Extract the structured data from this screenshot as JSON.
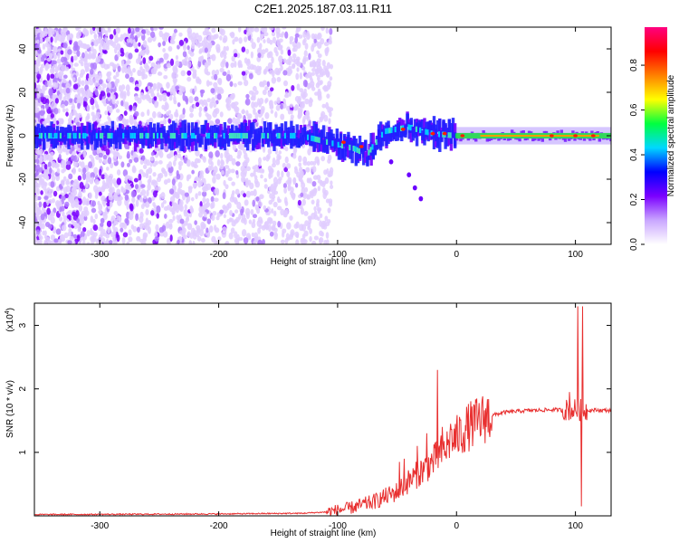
{
  "title": "C2E1.2025.187.03.11.R11",
  "chart_data": [
    {
      "type": "heatmap",
      "name": "spectrogram",
      "xlabel": "Height of straight line (km)",
      "ylabel": "Frequency (Hz)",
      "xlim": [
        -355,
        130
      ],
      "ylim": [
        -50,
        50
      ],
      "x_ticks": [
        -300,
        -200,
        -100,
        0,
        100
      ],
      "x_tick_labels": [
        "-300",
        "-200",
        "-100",
        "0",
        "100"
      ],
      "y_ticks": [
        -40,
        -20,
        0,
        20,
        40
      ],
      "y_tick_labels": [
        "-40",
        "-20",
        "0",
        "20",
        "40"
      ],
      "colorbar": {
        "label": "Normalized spectral amplitude",
        "range": [
          0,
          0.97
        ],
        "ticks": [
          0.0,
          0.2,
          0.4,
          0.6,
          0.8
        ],
        "tick_labels": [
          "0.0",
          "0.2",
          "0.4",
          "0.6",
          "0.8"
        ],
        "colors": [
          "#ffffff",
          "#c9a6ff",
          "#7b00ff",
          "#0000ff",
          "#00d8ff",
          "#00ff40",
          "#ffff00",
          "#ff8000",
          "#ff0000",
          "#ff0080"
        ]
      },
      "ridge_track": [
        {
          "x": -355,
          "y": 0
        },
        {
          "x": -200,
          "y": 0
        },
        {
          "x": -130,
          "y": 0
        },
        {
          "x": -115,
          "y": -2
        },
        {
          "x": -100,
          "y": -4
        },
        {
          "x": -85,
          "y": -6
        },
        {
          "x": -75,
          "y": -9
        },
        {
          "x": -70,
          "y": -5
        },
        {
          "x": -60,
          "y": 2
        },
        {
          "x": -40,
          "y": 4
        },
        {
          "x": -20,
          "y": 1
        },
        {
          "x": 0,
          "y": 0
        },
        {
          "x": 130,
          "y": 0
        }
      ],
      "branch_points": [
        {
          "x": -55,
          "y": -12
        },
        {
          "x": -40,
          "y": -18
        },
        {
          "x": -35,
          "y": -24
        },
        {
          "x": -30,
          "y": -29
        }
      ],
      "red_peaks": [
        {
          "x": -95,
          "y": -3
        },
        {
          "x": -80,
          "y": -5
        },
        {
          "x": -45,
          "y": 3
        },
        {
          "x": -20,
          "y": 1
        },
        {
          "x": -10,
          "y": 1
        },
        {
          "x": 5,
          "y": 0
        },
        {
          "x": 80,
          "y": 0
        },
        {
          "x": 100,
          "y": 0
        },
        {
          "x": 115,
          "y": 0
        }
      ]
    },
    {
      "type": "line",
      "name": "snr",
      "xlabel": "Height of straight line (km)",
      "ylabel": "SNR (10 * v/v)",
      "y_multiplier": "(x10",
      "y_multiplier_exp": "4",
      "y_multiplier_close": ")",
      "xlim": [
        -355,
        130
      ],
      "ylim": [
        0,
        3.35
      ],
      "x_ticks": [
        -300,
        -200,
        -100,
        0,
        100
      ],
      "x_tick_labels": [
        "-300",
        "-200",
        "-100",
        "0",
        "100"
      ],
      "y_ticks": [
        1,
        2,
        3
      ],
      "y_tick_labels": [
        "1",
        "2",
        "3"
      ],
      "line_color": "#e83030",
      "baseline": [
        {
          "x": -355,
          "y": 0.02
        },
        {
          "x": -200,
          "y": 0.03
        },
        {
          "x": -130,
          "y": 0.04
        },
        {
          "x": -110,
          "y": 0.06
        },
        {
          "x": -90,
          "y": 0.12
        },
        {
          "x": -70,
          "y": 0.22
        },
        {
          "x": -50,
          "y": 0.38
        },
        {
          "x": -40,
          "y": 0.55
        },
        {
          "x": -20,
          "y": 0.85
        },
        {
          "x": -5,
          "y": 1.15
        },
        {
          "x": 10,
          "y": 1.4
        },
        {
          "x": 25,
          "y": 1.56
        },
        {
          "x": 40,
          "y": 1.63
        },
        {
          "x": 60,
          "y": 1.66
        },
        {
          "x": 80,
          "y": 1.67
        },
        {
          "x": 100,
          "y": 1.67
        },
        {
          "x": 130,
          "y": 1.66
        }
      ],
      "spikes": [
        {
          "x": -48,
          "y": 0.85
        },
        {
          "x": -44,
          "y": 0.9
        },
        {
          "x": -33,
          "y": 1.1
        },
        {
          "x": -25,
          "y": 1.3
        },
        {
          "x": -16,
          "y": 2.3
        },
        {
          "x": -12,
          "y": 1.4
        },
        {
          "x": -5,
          "y": 1.45
        },
        {
          "x": 95,
          "y": 1.95
        },
        {
          "x": 102,
          "y": 3.3
        },
        {
          "x": 105,
          "y": 0.15
        },
        {
          "x": 106,
          "y": 3.3
        }
      ]
    }
  ]
}
